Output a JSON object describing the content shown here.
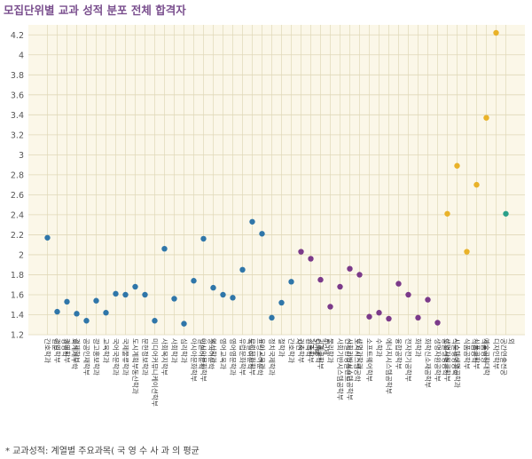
{
  "header": {
    "title": "모집단위별 교과 성적 분포 전체 합격자"
  },
  "footnote": "* 교과성적:  계열별 주요과목( 국  영  수  사  과 의 평균",
  "colors": {
    "plot_bg": "#fbf7e8",
    "grid": "#e0d8b8",
    "blue": "#2f76a9",
    "purple": "#7b3a8a",
    "gold": "#e9b229",
    "teal": "#2aa08a"
  },
  "chart_data": {
    "type": "scatter",
    "title": "모집단위별 교과 성적 분포 전체 합격자",
    "xlabel": "",
    "ylabel": "",
    "ylim": [
      1.2,
      4.3
    ],
    "yticks": [
      1.2,
      1.4,
      1.6,
      1.8,
      2,
      2.2,
      2.4,
      2.6,
      2.8,
      3,
      3.2,
      3.4,
      3.6,
      3.8,
      4,
      4.2
    ],
    "grid": true,
    "legend": "none",
    "points": [
      {
        "label": "간호학과 인문",
        "value": 2.17,
        "color": "blue"
      },
      {
        "label": "경영학부 경영학",
        "value": 1.43,
        "color": "blue"
      },
      {
        "label": "경영학부 회계세무학",
        "value": 1.53,
        "color": "blue"
      },
      {
        "label": "경제학부",
        "value": 1.41,
        "color": "blue"
      },
      {
        "label": "공공인재학부",
        "value": 1.34,
        "color": "blue"
      },
      {
        "label": "광고홍보학과",
        "value": 1.54,
        "color": "blue"
      },
      {
        "label": "교육학과",
        "value": 1.42,
        "color": "blue"
      },
      {
        "label": "국어국문학과",
        "value": 1.61,
        "color": "blue"
      },
      {
        "label": "국제물류학과",
        "value": 1.6,
        "color": "blue"
      },
      {
        "label": "도시계획부동산학과",
        "value": 1.68,
        "color": "blue"
      },
      {
        "label": "문헌정보학과",
        "value": 1.6,
        "color": "blue"
      },
      {
        "label": "미디어커뮤니케이션학부",
        "value": 1.34,
        "color": "blue"
      },
      {
        "label": "사회복지학부",
        "value": 2.06,
        "color": "blue"
      },
      {
        "label": "사회학과",
        "value": 1.56,
        "color": "blue"
      },
      {
        "label": "심리학과",
        "value": 1.31,
        "color": "blue"
      },
      {
        "label": "아시아문화학부 일본어문학",
        "value": 1.74,
        "color": "blue"
      },
      {
        "label": "아시아문화학부 중국어문학",
        "value": 2.16,
        "color": "blue"
      },
      {
        "label": "역사학과",
        "value": 1.67,
        "color": "blue"
      },
      {
        "label": "영어교육과",
        "value": 1.6,
        "color": "blue"
      },
      {
        "label": "영어영문학과",
        "value": 1.57,
        "color": "blue"
      },
      {
        "label": "유럽문화학부 독일어문학",
        "value": 1.85,
        "color": "blue"
      },
      {
        "label": "유럽문화학부 프랑스어문학",
        "value": 2.33,
        "color": "blue"
      },
      {
        "label": "유아교육과",
        "value": 2.21,
        "color": "blue"
      },
      {
        "label": "정치국제학과",
        "value": 1.37,
        "color": "blue"
      },
      {
        "label": "철학과",
        "value": 1.52,
        "color": "blue"
      },
      {
        "label": "간호학과 자연",
        "value": 1.73,
        "color": "blue"
      },
      {
        "label": "건축학부 건축학 5년제",
        "value": 2.03,
        "color": "purple"
      },
      {
        "label": "건축학부 건축공학 4년제",
        "value": 1.96,
        "color": "purple"
      },
      {
        "label": "기계공학부",
        "value": 1.75,
        "color": "purple"
      },
      {
        "label": "물리학과",
        "value": 1.48,
        "color": "purple"
      },
      {
        "label": "사회기반시스템공학부 건설환경플랜트",
        "value": 1.68,
        "color": "purple"
      },
      {
        "label": "사회기반시스템공학부 도시시스템공학",
        "value": 1.86,
        "color": "purple"
      },
      {
        "label": "생명과학과",
        "value": 1.8,
        "color": "purple"
      },
      {
        "label": "소프트웨어학부",
        "value": 1.38,
        "color": "purple"
      },
      {
        "label": "수학과",
        "value": 1.42,
        "color": "purple"
      },
      {
        "label": "에너지시스템공학부",
        "value": 1.36,
        "color": "purple"
      },
      {
        "label": "융합공학부",
        "value": 1.71,
        "color": "purple"
      },
      {
        "label": "전자전기공학부",
        "value": 1.6,
        "color": "purple"
      },
      {
        "label": "화학과",
        "value": 1.37,
        "color": "purple"
      },
      {
        "label": "화학신소재공학부",
        "value": 1.55,
        "color": "purple"
      },
      {
        "label": "생명자원공학부 동물생명공학",
        "value": 1.32,
        "color": "purple"
      },
      {
        "label": "생명자원공학부 식물생명공학",
        "value": 2.41,
        "color": "gold"
      },
      {
        "label": "시스템생명공학과",
        "value": 2.89,
        "color": "gold"
      },
      {
        "label": "식품공학부 식품공학",
        "value": 2.03,
        "color": "gold"
      },
      {
        "label": "식품공학부 식품영양",
        "value": 2.7,
        "color": "gold"
      },
      {
        "label": "예술공학대학",
        "value": 3.37,
        "color": "gold"
      },
      {
        "label": "디자인학부 공간연출전공 외",
        "value": 4.22,
        "color": "gold"
      },
      {
        "label": "",
        "value": 2.41,
        "color": "teal"
      }
    ]
  }
}
